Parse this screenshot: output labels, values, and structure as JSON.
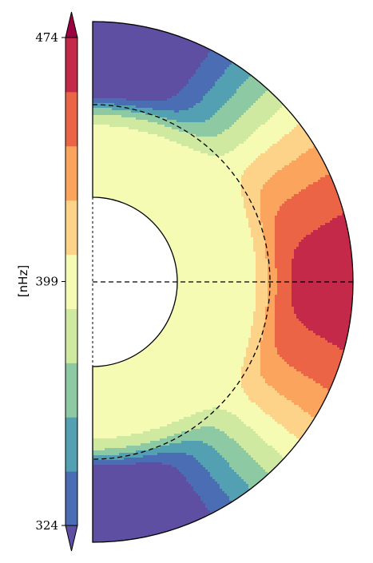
{
  "chart_data": {
    "type": "heatmap",
    "subtype": "meridional-plane contour map (rotation rate)",
    "title": "",
    "colorbar": {
      "label": "[nHz]",
      "orientation": "vertical",
      "extend": "both",
      "ticks": [
        324,
        399,
        474
      ],
      "tick_labels": [
        "324",
        "399",
        "474"
      ],
      "levels": [
        324,
        336.5,
        349,
        361.5,
        374,
        386.5,
        399,
        411.5,
        424,
        436.5,
        449,
        461.5,
        474
      ],
      "colors": [
        "#4b6db3",
        "#52a0b1",
        "#8dcaa4",
        "#cfe9a0",
        "#f6fbb4",
        "#fdd38a",
        "#faa45e",
        "#ec6446",
        "#c4294a"
      ],
      "colormap": "Spectral_r"
    },
    "domain": {
      "shape": "half-annulus",
      "inner_radius_fraction": 0.33,
      "reference_radius_fraction": 0.69,
      "reference_line": "dashed circle and equator line"
    },
    "bands_by_latitude": [
      {
        "region": "equator, near surface",
        "value_nHz": 470
      },
      {
        "region": "equator, mid shell",
        "value_nHz": 455
      },
      {
        "region": "mid latitudes, surface",
        "value_nHz": 405
      },
      {
        "region": "deep interior",
        "value_nHz": 395
      },
      {
        "region": "high latitudes, surface",
        "value_nHz": 345
      },
      {
        "region": "poles",
        "value_nHz": 330
      }
    ],
    "colors": {
      "background": "#ffffff",
      "contour_line": "#1a1a1a",
      "dashed_line": "#000000",
      "below_min": "#5e4fa2",
      "above_max": "#9e0142"
    }
  }
}
